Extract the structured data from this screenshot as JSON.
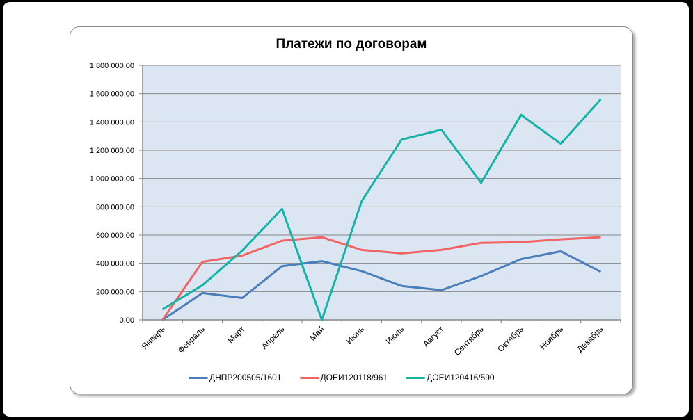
{
  "chart_data": {
    "type": "line",
    "title": "Платежи по договорам",
    "xlabel": "",
    "ylabel": "",
    "categories": [
      "Январь",
      "Февраль",
      "Март",
      "Апрель",
      "Май",
      "Июнь",
      "Июль",
      "Август",
      "Сентябрь",
      "Октябрь",
      "Ноябрь",
      "Декабрь"
    ],
    "ylim": [
      0,
      1800000
    ],
    "yticks": [
      0,
      200000,
      400000,
      600000,
      800000,
      1000000,
      1200000,
      1400000,
      1600000,
      1800000
    ],
    "ytick_labels": [
      "0,00",
      "200 000,00",
      "400 000,00",
      "600 000,00",
      "800 000,00",
      "1 000 000,00",
      "1 200 000,00",
      "1 400 000,00",
      "1 600 000,00",
      "1 800 000,00"
    ],
    "grid": true,
    "legend_position": "bottom",
    "plot_background": "#dce6f2",
    "series": [
      {
        "name": "ДНПР200505/1601",
        "color": "#4a7ebb",
        "values": [
          0,
          190000,
          155000,
          380000,
          415000,
          345000,
          240000,
          210000,
          310000,
          430000,
          485000,
          340000
        ]
      },
      {
        "name": "ДОЕИ120118/961",
        "color": "#f26464",
        "values": [
          0,
          410000,
          455000,
          560000,
          585000,
          495000,
          470000,
          495000,
          545000,
          550000,
          570000,
          585000
        ]
      },
      {
        "name": "ДОЕИ120416/590",
        "color": "#13b3a5",
        "values": [
          75000,
          245000,
          490000,
          785000,
          0,
          840000,
          1275000,
          1345000,
          970000,
          1450000,
          1245000,
          1560000
        ]
      }
    ]
  }
}
